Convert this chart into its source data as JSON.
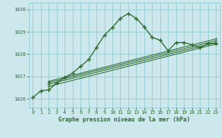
{
  "title": "Graphe pression niveau de la mer (hPa)",
  "background_color": "#cce8ed",
  "grid_color": "#99ccd4",
  "line_color": "#2d6a2d",
  "xlim": [
    -0.5,
    23.5
  ],
  "ylim": [
    1025.6,
    1030.3
  ],
  "yticks": [
    1026,
    1027,
    1028,
    1029,
    1030
  ],
  "xticks": [
    0,
    1,
    2,
    3,
    4,
    5,
    6,
    7,
    8,
    9,
    10,
    11,
    12,
    13,
    14,
    15,
    16,
    17,
    18,
    19,
    20,
    21,
    22,
    23
  ],
  "main_line_x": [
    0,
    1,
    2,
    3,
    4,
    5,
    6,
    7,
    8,
    9,
    10,
    11,
    12,
    13,
    14,
    15,
    16,
    17,
    18,
    19,
    20,
    21,
    22,
    23
  ],
  "main_line_y": [
    1026.05,
    1026.35,
    1026.4,
    1026.7,
    1026.95,
    1027.15,
    1027.45,
    1027.75,
    1028.3,
    1028.85,
    1029.2,
    1029.6,
    1029.82,
    1029.6,
    1029.22,
    1028.75,
    1028.62,
    1028.15,
    1028.52,
    1028.52,
    1028.42,
    1028.28,
    1028.48,
    1028.48
  ],
  "ref_lines": [
    {
      "x": [
        2,
        23
      ],
      "y": [
        1026.55,
        1028.45
      ]
    },
    {
      "x": [
        2,
        23
      ],
      "y": [
        1026.65,
        1028.52
      ]
    },
    {
      "x": [
        2,
        23
      ],
      "y": [
        1026.72,
        1028.6
      ]
    },
    {
      "x": [
        2,
        23
      ],
      "y": [
        1026.78,
        1028.68
      ]
    }
  ]
}
